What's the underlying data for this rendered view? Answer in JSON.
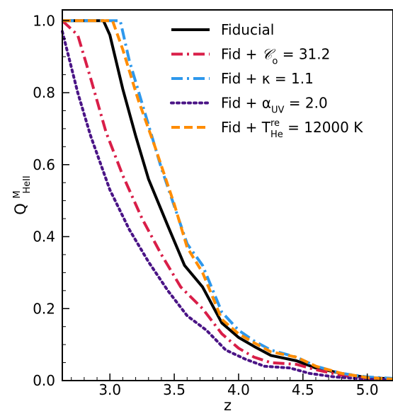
{
  "chart_data": {
    "type": "line",
    "xlabel": "z",
    "ylabel": "Q",
    "ylabel_superscript": "M",
    "ylabel_subscript": "HeII",
    "xlim": [
      2.63,
      5.2
    ],
    "ylim": [
      0.0,
      1.03
    ],
    "xticks": [
      3.0,
      3.5,
      4.0,
      4.5,
      5.0
    ],
    "xtick_labels": [
      "3.0",
      "3.5",
      "4.0",
      "4.5",
      "5.0"
    ],
    "yticks": [
      0.0,
      0.2,
      0.4,
      0.6,
      0.8,
      1.0
    ],
    "ytick_labels": [
      "0.0",
      "0.2",
      "0.4",
      "0.6",
      "0.8",
      "1.0"
    ],
    "grid": false,
    "legend_position": "top-right",
    "series": [
      {
        "legend": {
          "prefix": "Fiducial",
          "symbol": "",
          "sup": "",
          "sub": "",
          "suffix": ""
        },
        "color": "#000000",
        "dash": "solid",
        "x": [
          2.63,
          2.95,
          3.0,
          3.1,
          3.2,
          3.3,
          3.45,
          3.58,
          3.72,
          3.87,
          4.0,
          4.12,
          4.25,
          4.45,
          4.6,
          4.8,
          5.0,
          5.2
        ],
        "y": [
          1.0,
          1.0,
          0.96,
          0.81,
          0.68,
          0.56,
          0.43,
          0.32,
          0.26,
          0.16,
          0.12,
          0.095,
          0.07,
          0.055,
          0.035,
          0.02,
          0.008,
          0.005
        ]
      },
      {
        "legend": {
          "prefix": "Fid + ",
          "symbol": "𝒞",
          "sup": "",
          "sub": "o",
          "suffix": " = 31.2"
        },
        "color": "#d91e48",
        "dash": "dashdot",
        "x": [
          2.63,
          2.75,
          2.85,
          2.97,
          3.1,
          3.25,
          3.4,
          3.55,
          3.72,
          3.87,
          4.0,
          4.12,
          4.25,
          4.45,
          4.6,
          4.8,
          5.0,
          5.2
        ],
        "y": [
          1.0,
          0.96,
          0.84,
          0.69,
          0.57,
          0.45,
          0.35,
          0.26,
          0.2,
          0.13,
          0.09,
          0.065,
          0.05,
          0.045,
          0.03,
          0.015,
          0.005,
          0.002
        ]
      },
      {
        "legend": {
          "prefix": "Fid + κ = 1.1",
          "symbol": "",
          "sup": "",
          "sub": "",
          "suffix": ""
        },
        "color": "#2e98ec",
        "dash": "dashdot",
        "x": [
          2.63,
          3.08,
          3.15,
          3.25,
          3.4,
          3.6,
          3.72,
          3.87,
          4.0,
          4.12,
          4.25,
          4.45,
          4.6,
          4.8,
          5.0,
          5.2
        ],
        "y": [
          1.0,
          1.0,
          0.89,
          0.77,
          0.59,
          0.38,
          0.32,
          0.19,
          0.14,
          0.11,
          0.085,
          0.065,
          0.04,
          0.02,
          0.01,
          0.006
        ]
      },
      {
        "legend": {
          "prefix": "Fid + α",
          "symbol": "",
          "sup": "",
          "sub": "UV",
          "suffix": " = 2.0"
        },
        "color": "#4a1486",
        "dash": "dotted",
        "x": [
          2.63,
          2.75,
          2.85,
          3.0,
          3.15,
          3.3,
          3.45,
          3.6,
          3.75,
          3.9,
          4.05,
          4.2,
          4.4,
          4.55,
          4.75,
          5.0,
          5.2
        ],
        "y": [
          0.97,
          0.8,
          0.68,
          0.53,
          0.42,
          0.33,
          0.25,
          0.18,
          0.14,
          0.085,
          0.06,
          0.04,
          0.035,
          0.02,
          0.01,
          0.004,
          0.002
        ]
      },
      {
        "legend": {
          "prefix": "Fid + T",
          "symbol": "",
          "sup": "re",
          "sub": "He",
          "suffix": " = 12000 K"
        },
        "color": "#ff8c00",
        "dash": "dashed",
        "x": [
          2.63,
          3.02,
          3.1,
          3.22,
          3.35,
          3.5,
          3.6,
          3.72,
          3.87,
          4.0,
          4.12,
          4.25,
          4.45,
          4.6,
          4.8,
          5.0,
          5.2
        ],
        "y": [
          1.0,
          1.0,
          0.92,
          0.78,
          0.65,
          0.49,
          0.37,
          0.3,
          0.17,
          0.13,
          0.105,
          0.08,
          0.065,
          0.04,
          0.02,
          0.008,
          0.004
        ]
      }
    ]
  }
}
